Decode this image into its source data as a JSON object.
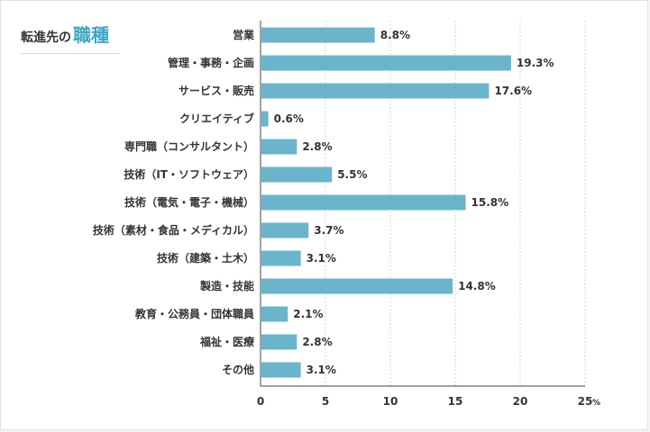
{
  "title": {
    "lead": "転進先の",
    "emphasis": "職種"
  },
  "colors": {
    "bar": "#6ab4cc",
    "grid": "#c8c8c8",
    "axis": "#444444",
    "accent": "#3aa6c2"
  },
  "chart_data": {
    "type": "bar",
    "orientation": "horizontal",
    "categories": [
      "営業",
      "管理・事務・企画",
      "サービス・販売",
      "クリエイティブ",
      "専門職（コンサルタント）",
      "技術（IT・ソフトウェア）",
      "技術（電気・電子・機械）",
      "技術（素材・食品・メディカル）",
      "技術（建築・土木）",
      "製造・技能",
      "教育・公務員・団体職員",
      "福祉・医療",
      "その他"
    ],
    "values": [
      8.8,
      19.3,
      17.6,
      0.6,
      2.8,
      5.5,
      15.8,
      3.7,
      3.1,
      14.8,
      2.1,
      2.8,
      3.1
    ],
    "value_labels": [
      "8.8%",
      "19.3%",
      "17.6%",
      "0.6%",
      "2.8%",
      "5.5%",
      "15.8%",
      "3.7%",
      "3.1%",
      "14.8%",
      "2.1%",
      "2.8%",
      "3.1%"
    ],
    "xticks": [
      0,
      5,
      10,
      15,
      20,
      25
    ],
    "xunit": "%",
    "xlim": [
      0,
      25
    ],
    "grid": true
  }
}
